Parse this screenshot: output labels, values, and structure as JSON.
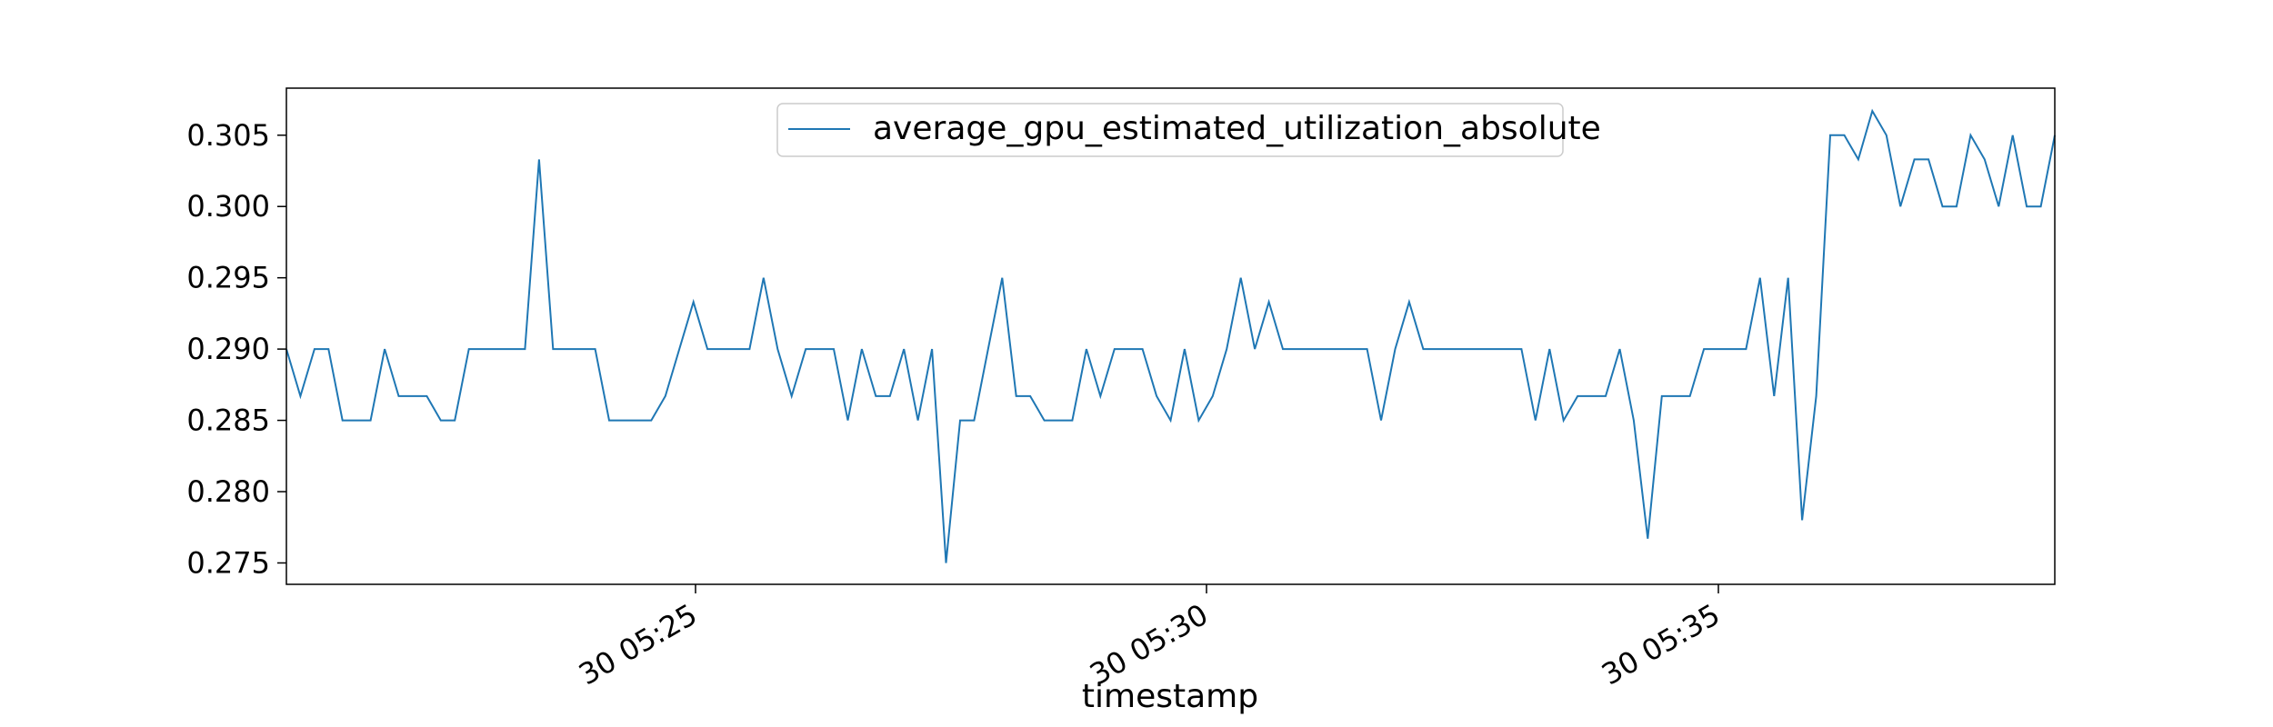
{
  "chart_data": {
    "type": "line",
    "title": "",
    "xlabel": "timestamp",
    "ylabel": "",
    "x_ticks": [
      "30 05:25",
      "30 05:30",
      "30 05:35"
    ],
    "y_ticks": [
      "0.275",
      "0.280",
      "0.285",
      "0.290",
      "0.295",
      "0.300",
      "0.305"
    ],
    "ylim": [
      0.2735,
      0.3083
    ],
    "grid": false,
    "legend_placement": "upper center",
    "series": [
      {
        "name": "average_gpu_estimated_utilization_absolute",
        "color": "#1f77b4",
        "values": [
          0.29,
          0.2867,
          0.29,
          0.29,
          0.285,
          0.285,
          0.285,
          0.29,
          0.2867,
          0.2867,
          0.2867,
          0.285,
          0.285,
          0.29,
          0.29,
          0.29,
          0.29,
          0.29,
          0.3033,
          0.29,
          0.29,
          0.29,
          0.29,
          0.285,
          0.285,
          0.285,
          0.285,
          0.2867,
          0.29,
          0.2933,
          0.29,
          0.29,
          0.29,
          0.29,
          0.295,
          0.29,
          0.2867,
          0.29,
          0.29,
          0.29,
          0.285,
          0.29,
          0.2867,
          0.2867,
          0.29,
          0.285,
          0.29,
          0.275,
          0.285,
          0.285,
          0.29,
          0.295,
          0.2867,
          0.2867,
          0.285,
          0.285,
          0.285,
          0.29,
          0.2867,
          0.29,
          0.29,
          0.29,
          0.2867,
          0.285,
          0.29,
          0.285,
          0.2867,
          0.29,
          0.295,
          0.29,
          0.2933,
          0.29,
          0.29,
          0.29,
          0.29,
          0.29,
          0.29,
          0.29,
          0.285,
          0.29,
          0.2933,
          0.29,
          0.29,
          0.29,
          0.29,
          0.29,
          0.29,
          0.29,
          0.29,
          0.285,
          0.29,
          0.285,
          0.2867,
          0.2867,
          0.2867,
          0.29,
          0.285,
          0.2767,
          0.2867,
          0.2867,
          0.2867,
          0.29,
          0.29,
          0.29,
          0.29,
          0.295,
          0.2867,
          0.295,
          0.278,
          0.2867,
          0.305,
          0.305,
          0.3033,
          0.3067,
          0.305,
          0.3,
          0.3033,
          0.3033,
          0.3,
          0.3,
          0.305,
          0.3033,
          0.3,
          0.305,
          0.3,
          0.3,
          0.305
        ]
      }
    ]
  }
}
